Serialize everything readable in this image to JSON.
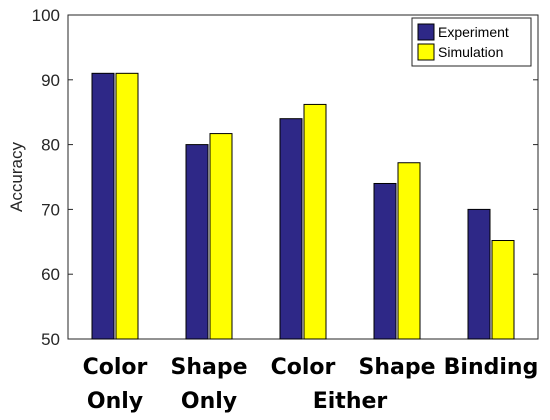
{
  "chart_data": {
    "type": "bar",
    "categories": [
      "Color Only",
      "Shape Only",
      "Color Either",
      "Shape Either",
      "Binding"
    ],
    "category_label_lines": [
      [
        "Color",
        "Only"
      ],
      [
        "Shape",
        "Only"
      ],
      [
        "Color",
        ""
      ],
      [
        "Shape",
        ""
      ],
      [
        "Binding",
        ""
      ]
    ],
    "shared_label": "Either",
    "series": [
      {
        "name": "Experiment",
        "values": [
          91,
          80,
          84,
          74,
          70
        ],
        "color": "#2e2887"
      },
      {
        "name": "Simulation",
        "values": [
          91,
          81.7,
          86.2,
          77.2,
          65.2
        ],
        "color": "#ffff00"
      }
    ],
    "ylabel": "Accuracy",
    "xlabel": "",
    "title": "",
    "ylim": [
      50,
      100
    ],
    "yticks": [
      "50",
      "60",
      "70",
      "80",
      "90",
      "100"
    ],
    "grid": false,
    "legend_position": "top-right"
  }
}
